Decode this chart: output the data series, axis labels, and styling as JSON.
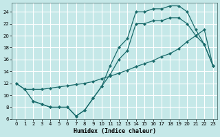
{
  "xlabel": "Humidex (Indice chaleur)",
  "background_color": "#c5e8e8",
  "grid_color": "#ffffff",
  "line_color": "#1a6b6b",
  "xlim": [
    -0.5,
    23.5
  ],
  "ylim": [
    6,
    25.5
  ],
  "xticks": [
    0,
    1,
    2,
    3,
    4,
    5,
    6,
    7,
    8,
    9,
    10,
    11,
    12,
    13,
    14,
    15,
    16,
    17,
    18,
    19,
    20,
    21,
    22,
    23
  ],
  "yticks": [
    6,
    8,
    10,
    12,
    14,
    16,
    18,
    20,
    22,
    24
  ],
  "line1_x": [
    0,
    1,
    2,
    3,
    4,
    5,
    6,
    7,
    8,
    9,
    10,
    11,
    12,
    13,
    14,
    15,
    16,
    17,
    18,
    19,
    20,
    21,
    22,
    23
  ],
  "line1_y": [
    12,
    11,
    9,
    8.5,
    8,
    8,
    8,
    6.5,
    7.5,
    9.5,
    11.5,
    15,
    18,
    19.5,
    24,
    24,
    24.5,
    24.5,
    25,
    25,
    24,
    21,
    18.5,
    15
  ],
  "line2_x": [
    0,
    1,
    2,
    3,
    4,
    5,
    6,
    7,
    8,
    9,
    10,
    11,
    12,
    13,
    14,
    15,
    16,
    17,
    18,
    19,
    20,
    21,
    22,
    23
  ],
  "line2_y": [
    12,
    11,
    11,
    11,
    11.2,
    11.4,
    11.6,
    11.8,
    12,
    12.3,
    12.8,
    13.2,
    13.7,
    14.2,
    14.8,
    15.3,
    15.8,
    16.5,
    17.0,
    17.8,
    19.0,
    20.0,
    21.0,
    15
  ],
  "line3_x": [
    2,
    3,
    4,
    5,
    6,
    7,
    8,
    9,
    10,
    11,
    12,
    13,
    14,
    15,
    16,
    17,
    18,
    19,
    20,
    21,
    22,
    23
  ],
  "line3_y": [
    9,
    8.5,
    8,
    8,
    8,
    6.5,
    7.5,
    9.5,
    11.5,
    13.5,
    16,
    17.5,
    22,
    22,
    22.5,
    22.5,
    23,
    23,
    22,
    20,
    18.5,
    15
  ]
}
